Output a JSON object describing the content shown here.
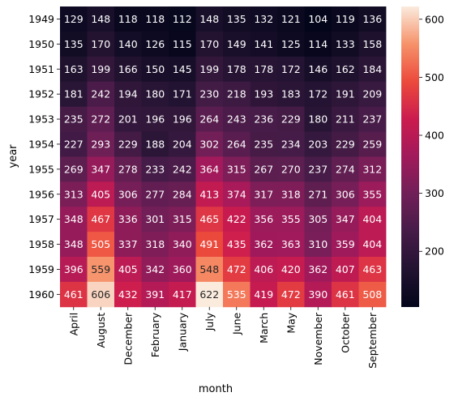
{
  "chart_data": {
    "type": "heatmap",
    "xlabel": "month",
    "ylabel": "year",
    "x_categories": [
      "April",
      "August",
      "December",
      "February",
      "January",
      "July",
      "June",
      "March",
      "May",
      "November",
      "October",
      "September"
    ],
    "y_categories": [
      "1949",
      "1950",
      "1951",
      "1952",
      "1953",
      "1954",
      "1955",
      "1956",
      "1957",
      "1958",
      "1959",
      "1960"
    ],
    "values": [
      [
        129,
        148,
        118,
        118,
        112,
        148,
        135,
        132,
        121,
        104,
        119,
        136
      ],
      [
        135,
        170,
        140,
        126,
        115,
        170,
        149,
        141,
        125,
        114,
        133,
        158
      ],
      [
        163,
        199,
        166,
        150,
        145,
        199,
        178,
        178,
        172,
        146,
        162,
        184
      ],
      [
        181,
        242,
        194,
        180,
        171,
        230,
        218,
        193,
        183,
        172,
        191,
        209
      ],
      [
        235,
        272,
        201,
        196,
        196,
        264,
        243,
        236,
        229,
        180,
        211,
        237
      ],
      [
        227,
        293,
        229,
        188,
        204,
        302,
        264,
        235,
        234,
        203,
        229,
        259
      ],
      [
        269,
        347,
        278,
        233,
        242,
        364,
        315,
        267,
        270,
        237,
        274,
        312
      ],
      [
        313,
        405,
        306,
        277,
        284,
        413,
        374,
        317,
        318,
        271,
        306,
        355
      ],
      [
        348,
        467,
        336,
        301,
        315,
        465,
        422,
        356,
        355,
        305,
        347,
        404
      ],
      [
        348,
        505,
        337,
        318,
        340,
        491,
        435,
        362,
        363,
        310,
        359,
        404
      ],
      [
        396,
        559,
        405,
        342,
        360,
        548,
        472,
        406,
        420,
        362,
        407,
        463
      ],
      [
        461,
        606,
        432,
        391,
        417,
        622,
        535,
        419,
        472,
        390,
        461,
        508
      ]
    ],
    "vmin": 104,
    "vmax": 622,
    "colorbar_ticks": [
      "200",
      "300",
      "400",
      "500",
      "600"
    ],
    "colormap": "rocket"
  }
}
